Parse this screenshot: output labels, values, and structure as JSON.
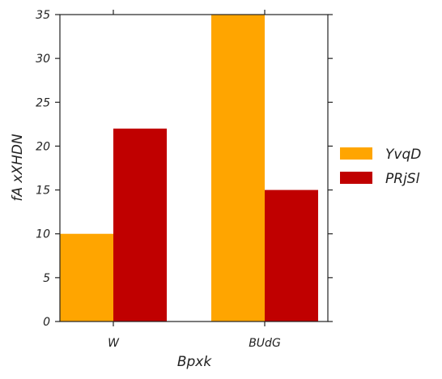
{
  "chart_data": {
    "type": "bar",
    "title": "",
    "xlabel": "Bpxk",
    "ylabel": "fA xXHDN",
    "categories": [
      "W",
      "BUdG"
    ],
    "series": [
      {
        "name": "YvqD",
        "values": [
          10,
          35
        ],
        "color": "#FFA500"
      },
      {
        "name": "PRjSl",
        "values": [
          22,
          15
        ],
        "color": "#C00000"
      }
    ],
    "ylim": [
      0,
      35
    ],
    "yticks": [
      0,
      5,
      10,
      15,
      20,
      25,
      30,
      35
    ],
    "grid": false,
    "legend": "right-outside"
  }
}
